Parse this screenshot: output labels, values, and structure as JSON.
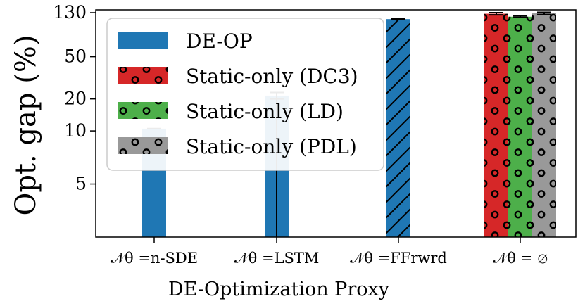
{
  "chart_data": {
    "type": "bar",
    "title": "",
    "xlabel": "DE-Optimization Proxy",
    "ylabel": "Opt. gap (%)",
    "ylim": [
      0,
      130
    ],
    "yscale": "symlog",
    "yticks": [
      5,
      10,
      20,
      50,
      130
    ],
    "categories": [
      "𝒩θ =n-SDE",
      "𝒩θ =LSTM",
      "𝒩θ =FFrwrd",
      "𝒩θ = ∅"
    ],
    "series": [
      {
        "name": "DE-OP",
        "color": "#1f77b4",
        "values": [
          10.5,
          21.5,
          113,
          null
        ],
        "errors": [
          0,
          1.5,
          0.8,
          null
        ],
        "hatch": [
          "none",
          "line",
          "diag",
          "none"
        ]
      },
      {
        "name": "Static-only (DC3)",
        "color": "#d62728",
        "values": [
          null,
          null,
          null,
          127
        ],
        "errors": [
          null,
          null,
          null,
          3
        ],
        "hatch": "dots"
      },
      {
        "name": "Static-only (LD)",
        "color": "#4daf4a",
        "values": [
          null,
          null,
          null,
          119
        ],
        "errors": [
          null,
          null,
          null,
          2
        ],
        "hatch": "dots"
      },
      {
        "name": "Static-only (PDL)",
        "color": "#999999",
        "values": [
          null,
          null,
          null,
          128
        ],
        "errors": [
          null,
          null,
          null,
          3
        ],
        "hatch": "dots"
      }
    ],
    "legend": "top-left"
  }
}
